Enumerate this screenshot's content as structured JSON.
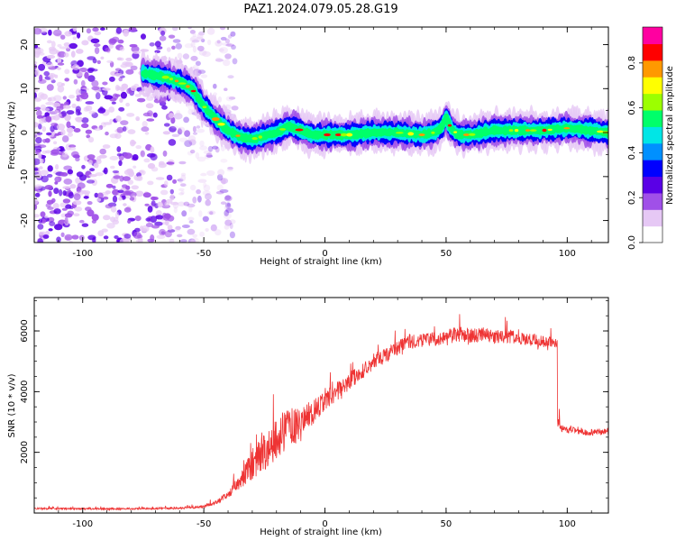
{
  "title": "PAZ1.2024.079.05.28.G19",
  "chart_data": [
    {
      "type": "heatmap",
      "xlabel": "Height of straight line (km)",
      "ylabel": "Frequency (Hz)",
      "xlim": [
        -120,
        117
      ],
      "ylim": [
        -25,
        24
      ],
      "x_ticks": [
        -100,
        -50,
        0,
        50,
        100
      ],
      "y_ticks": [
        -20,
        -10,
        0,
        10,
        20
      ],
      "colorbar": {
        "label": "Normalized spectral amplitude",
        "range": [
          0,
          0.96
        ],
        "ticks": [
          0.0,
          0.2,
          0.4,
          0.6,
          0.8
        ],
        "colormap": [
          "#ffffff",
          "#e6c8f5",
          "#a050e8",
          "#5a00e6",
          "#0000ff",
          "#0090ff",
          "#00e6e6",
          "#00ff6a",
          "#9cff00",
          "#ffff00",
          "#ff9900",
          "#ff0000",
          "#ff00a0"
        ]
      },
      "ridge": [
        [
          -75,
          13.5
        ],
        [
          -65,
          12.5
        ],
        [
          -60,
          11.5
        ],
        [
          -55,
          10
        ],
        [
          -50,
          6
        ],
        [
          -45,
          3
        ],
        [
          -40,
          0.5
        ],
        [
          -35,
          -1
        ],
        [
          -30,
          -1.5
        ],
        [
          -20,
          0
        ],
        [
          -15,
          1.5
        ],
        [
          -10,
          0.5
        ],
        [
          -5,
          -0.5
        ],
        [
          0,
          -0.5
        ],
        [
          10,
          -0.5
        ],
        [
          20,
          0
        ],
        [
          30,
          0
        ],
        [
          40,
          -0.5
        ],
        [
          45,
          0
        ],
        [
          48,
          1
        ],
        [
          50,
          3.5
        ],
        [
          52,
          1
        ],
        [
          55,
          -0.5
        ],
        [
          60,
          -0.5
        ],
        [
          70,
          0.5
        ],
        [
          80,
          0.5
        ],
        [
          90,
          0.5
        ],
        [
          100,
          1
        ],
        [
          110,
          0.5
        ],
        [
          117,
          0
        ]
      ],
      "noise_region_x": [
        -120,
        -45
      ]
    },
    {
      "type": "line",
      "xlabel": "Height of straight line (km)",
      "ylabel": "SNR (10 * v/v)",
      "xlim": [
        -120,
        117
      ],
      "ylim": [
        0,
        7100
      ],
      "x_ticks": [
        -100,
        -50,
        0,
        50,
        100
      ],
      "y_ticks": [
        2000,
        4000,
        6000
      ],
      "color": "#ee3333",
      "series": [
        {
          "x": [
            -120,
            -100,
            -80,
            -60,
            -50,
            -45,
            -40,
            -35,
            -30,
            -25,
            -20,
            -15,
            -10,
            -5,
            0,
            5,
            10,
            15,
            20,
            25,
            30,
            35,
            40,
            45,
            50,
            55,
            60,
            65,
            70,
            75,
            80,
            85,
            90,
            95,
            96,
            97,
            100,
            105,
            110,
            117
          ],
          "y": [
            150,
            140,
            140,
            160,
            220,
            350,
            600,
            1100,
            1600,
            2100,
            2500,
            2800,
            2900,
            3300,
            3700,
            4000,
            4350,
            4650,
            5000,
            5200,
            5450,
            5650,
            5700,
            5750,
            5800,
            5900,
            5850,
            5900,
            5800,
            5850,
            5750,
            5700,
            5650,
            5600,
            5500,
            2800,
            2750,
            2700,
            2650,
            2700
          ],
          "noise_amplitude": [
            50,
            50,
            50,
            60,
            80,
            120,
            200,
            500,
            900,
            1200,
            1200,
            1100,
            900,
            700,
            550,
            500,
            500,
            450,
            450,
            450,
            400,
            400,
            400,
            400,
            400,
            450,
            400,
            400,
            400,
            400,
            350,
            350,
            350,
            300,
            300,
            200,
            180,
            180,
            180,
            180
          ]
        }
      ]
    }
  ]
}
